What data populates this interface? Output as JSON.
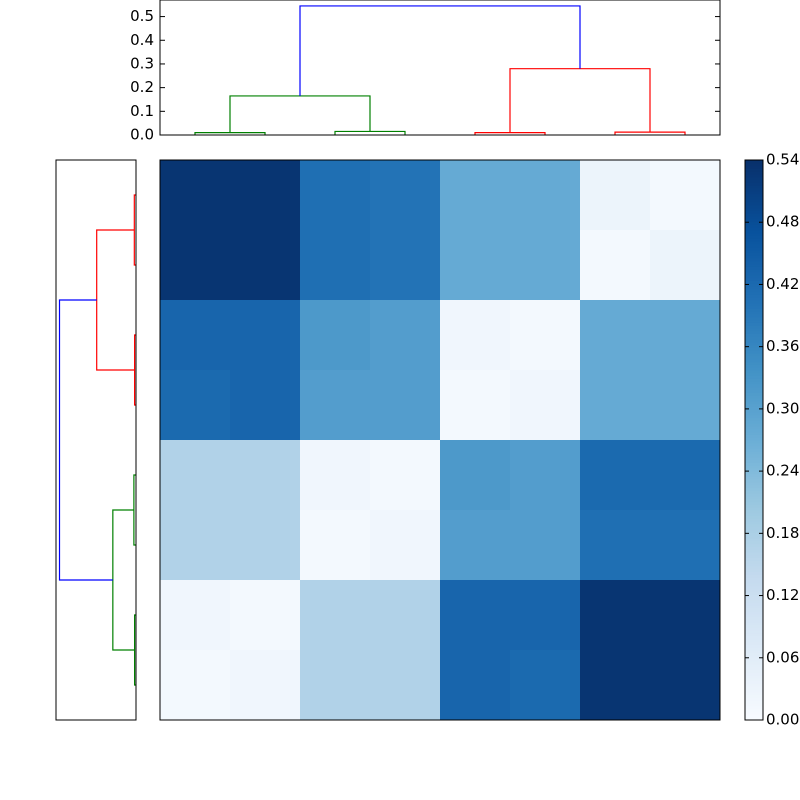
{
  "chart_data": [
    {
      "type": "dendrogram",
      "orientation": "top",
      "xlim": [
        0,
        80
      ],
      "ylim": [
        0,
        0.57
      ],
      "yticks": [
        {
          "value": 0,
          "label": "0.0"
        },
        0.1,
        0.2,
        0.3,
        0.4,
        0.5
      ],
      "links": [
        {
          "x": [
            5,
            5,
            15,
            15
          ],
          "h": [
            0,
            0.01,
            0.01,
            0
          ],
          "color": "#008000"
        },
        {
          "x": [
            25,
            25,
            35,
            35
          ],
          "h": [
            0,
            0.015,
            0.015,
            0
          ],
          "color": "#008000"
        },
        {
          "x": [
            10,
            10,
            30,
            30
          ],
          "h": [
            0.01,
            0.165,
            0.165,
            0.015
          ],
          "color": "#008000"
        },
        {
          "x": [
            45,
            45,
            55,
            55
          ],
          "h": [
            0,
            0.01,
            0.01,
            0
          ],
          "color": "#ff0000"
        },
        {
          "x": [
            65,
            65,
            75,
            75
          ],
          "h": [
            0,
            0.012,
            0.012,
            0
          ],
          "color": "#ff0000"
        },
        {
          "x": [
            50,
            50,
            70,
            70
          ],
          "h": [
            0.01,
            0.28,
            0.28,
            0.012
          ],
          "color": "#ff0000"
        },
        {
          "x": [
            20,
            20,
            60,
            60
          ],
          "h": [
            0.165,
            0.545,
            0.545,
            0.28
          ],
          "color": "#0000ff"
        }
      ]
    },
    {
      "type": "dendrogram",
      "orientation": "left",
      "xlim": [
        0,
        80
      ],
      "ylim": [
        0,
        0.57
      ],
      "links": [
        {
          "x": [
            5,
            5,
            15,
            15
          ],
          "h": [
            0,
            0.012,
            0.012,
            0
          ],
          "color": "#ff0000"
        },
        {
          "x": [
            25,
            25,
            35,
            35
          ],
          "h": [
            0,
            0.01,
            0.01,
            0
          ],
          "color": "#ff0000"
        },
        {
          "x": [
            10,
            10,
            30,
            30
          ],
          "h": [
            0.012,
            0.28,
            0.28,
            0.01
          ],
          "color": "#ff0000"
        },
        {
          "x": [
            45,
            45,
            55,
            55
          ],
          "h": [
            0,
            0.015,
            0.015,
            0
          ],
          "color": "#008000"
        },
        {
          "x": [
            65,
            65,
            75,
            75
          ],
          "h": [
            0,
            0.01,
            0.01,
            0
          ],
          "color": "#008000"
        },
        {
          "x": [
            50,
            50,
            70,
            70
          ],
          "h": [
            0.015,
            0.165,
            0.165,
            0.01
          ],
          "color": "#008000"
        },
        {
          "x": [
            20,
            20,
            60,
            60
          ],
          "h": [
            0.28,
            0.545,
            0.545,
            0.165
          ],
          "color": "#0000ff"
        }
      ]
    },
    {
      "type": "heatmap",
      "cmap": "Blues",
      "clim": [
        0,
        0.54
      ],
      "cticks": [
        {
          "value": 0,
          "label": "0.00"
        },
        0.06,
        0.12,
        0.18,
        0.24,
        {
          "value": 0.3,
          "label": "0.30"
        },
        0.36,
        0.42,
        0.48,
        0.54
      ],
      "values": [
        [
          0.53,
          0.53,
          0.41,
          0.4,
          0.28,
          0.28,
          0.03,
          0.01
        ],
        [
          0.53,
          0.53,
          0.41,
          0.4,
          0.28,
          0.28,
          0.01,
          0.03
        ],
        [
          0.43,
          0.43,
          0.32,
          0.31,
          0.02,
          0.01,
          0.28,
          0.28
        ],
        [
          0.42,
          0.43,
          0.31,
          0.31,
          0.01,
          0.02,
          0.28,
          0.28
        ],
        [
          0.17,
          0.17,
          0.02,
          0.01,
          0.32,
          0.31,
          0.42,
          0.42
        ],
        [
          0.17,
          0.17,
          0.01,
          0.02,
          0.31,
          0.31,
          0.41,
          0.41
        ],
        [
          0.02,
          0.01,
          0.17,
          0.17,
          0.43,
          0.43,
          0.53,
          0.53
        ],
        [
          0.01,
          0.02,
          0.17,
          0.17,
          0.43,
          0.42,
          0.53,
          0.53
        ]
      ]
    }
  ]
}
